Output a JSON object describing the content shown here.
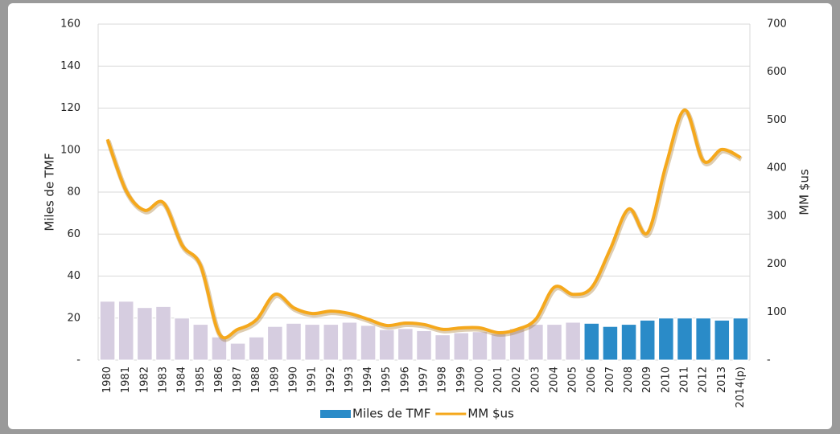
{
  "chart_data": {
    "type": "bar_line",
    "ylabel": "Miles de TMF",
    "y2label": "MM $us",
    "categories": [
      "1980",
      "1981",
      "1982",
      "1983",
      "1984",
      "1985",
      "1986",
      "1987",
      "1988",
      "1989",
      "1990",
      "1991",
      "1992",
      "1993",
      "1994",
      "1995",
      "1996",
      "1997",
      "1998",
      "1999",
      "2000",
      "2001",
      "2002",
      "2003",
      "2004",
      "2005",
      "2006",
      "2007",
      "2008",
      "2009",
      "2010",
      "2011",
      "2012",
      "2013",
      "2014(p)"
    ],
    "series": [
      {
        "name": "Miles de TMF",
        "type": "bar",
        "color": "#2a8bc8",
        "colors": [
          "#d6cde0",
          "#d6cde0",
          "#d6cde0",
          "#d6cde0",
          "#d6cde0",
          "#d6cde0",
          "#d6cde0",
          "#d6cde0",
          "#d6cde0",
          "#d6cde0",
          "#d6cde0",
          "#d6cde0",
          "#d6cde0",
          "#d6cde0",
          "#d6cde0",
          "#d6cde0",
          "#d6cde0",
          "#d6cde0",
          "#d6cde0",
          "#d6cde0",
          "#d6cde0",
          "#d6cde0",
          "#d6cde0",
          "#d6cde0",
          "#d6cde0",
          "#d6cde0",
          "#2a8bc8",
          "#2a8bc8",
          "#2a8bc8",
          "#2a8bc8",
          "#2a8bc8",
          "#2a8bc8",
          "#2a8bc8",
          "#2a8bc8",
          "#2a8bc8"
        ],
        "values": [
          28,
          28,
          25,
          25.5,
          20,
          17,
          11,
          8,
          11,
          16,
          17.5,
          17,
          17,
          18,
          16.5,
          14.5,
          15,
          14,
          12,
          13,
          13.5,
          12.5,
          15,
          17,
          17,
          18,
          17.5,
          16,
          17,
          19,
          20,
          20,
          20,
          19,
          20
        ]
      },
      {
        "name": "MM $us",
        "type": "line",
        "axis": "y2",
        "color": "#f5a81c",
        "values": [
          460,
          353,
          312,
          328,
          240,
          197,
          55,
          64,
          84,
          137,
          109,
          97,
          102,
          97,
          85,
          72,
          77,
          74,
          64,
          67,
          67,
          57,
          64,
          85,
          152,
          137,
          151,
          231,
          315,
          265,
          407,
          521,
          415,
          439,
          422
        ]
      }
    ],
    "ylim": [
      0,
      160
    ],
    "yticks": [
      {
        "value": 0,
        "label": "-"
      },
      20,
      40,
      60,
      80,
      100,
      120,
      140,
      160
    ],
    "y2lim": [
      0,
      700
    ],
    "y2ticks": [
      {
        "value": 0,
        "label": "-"
      },
      100,
      200,
      300,
      400,
      500,
      600,
      700
    ],
    "grid": true,
    "legend": "bottom"
  }
}
